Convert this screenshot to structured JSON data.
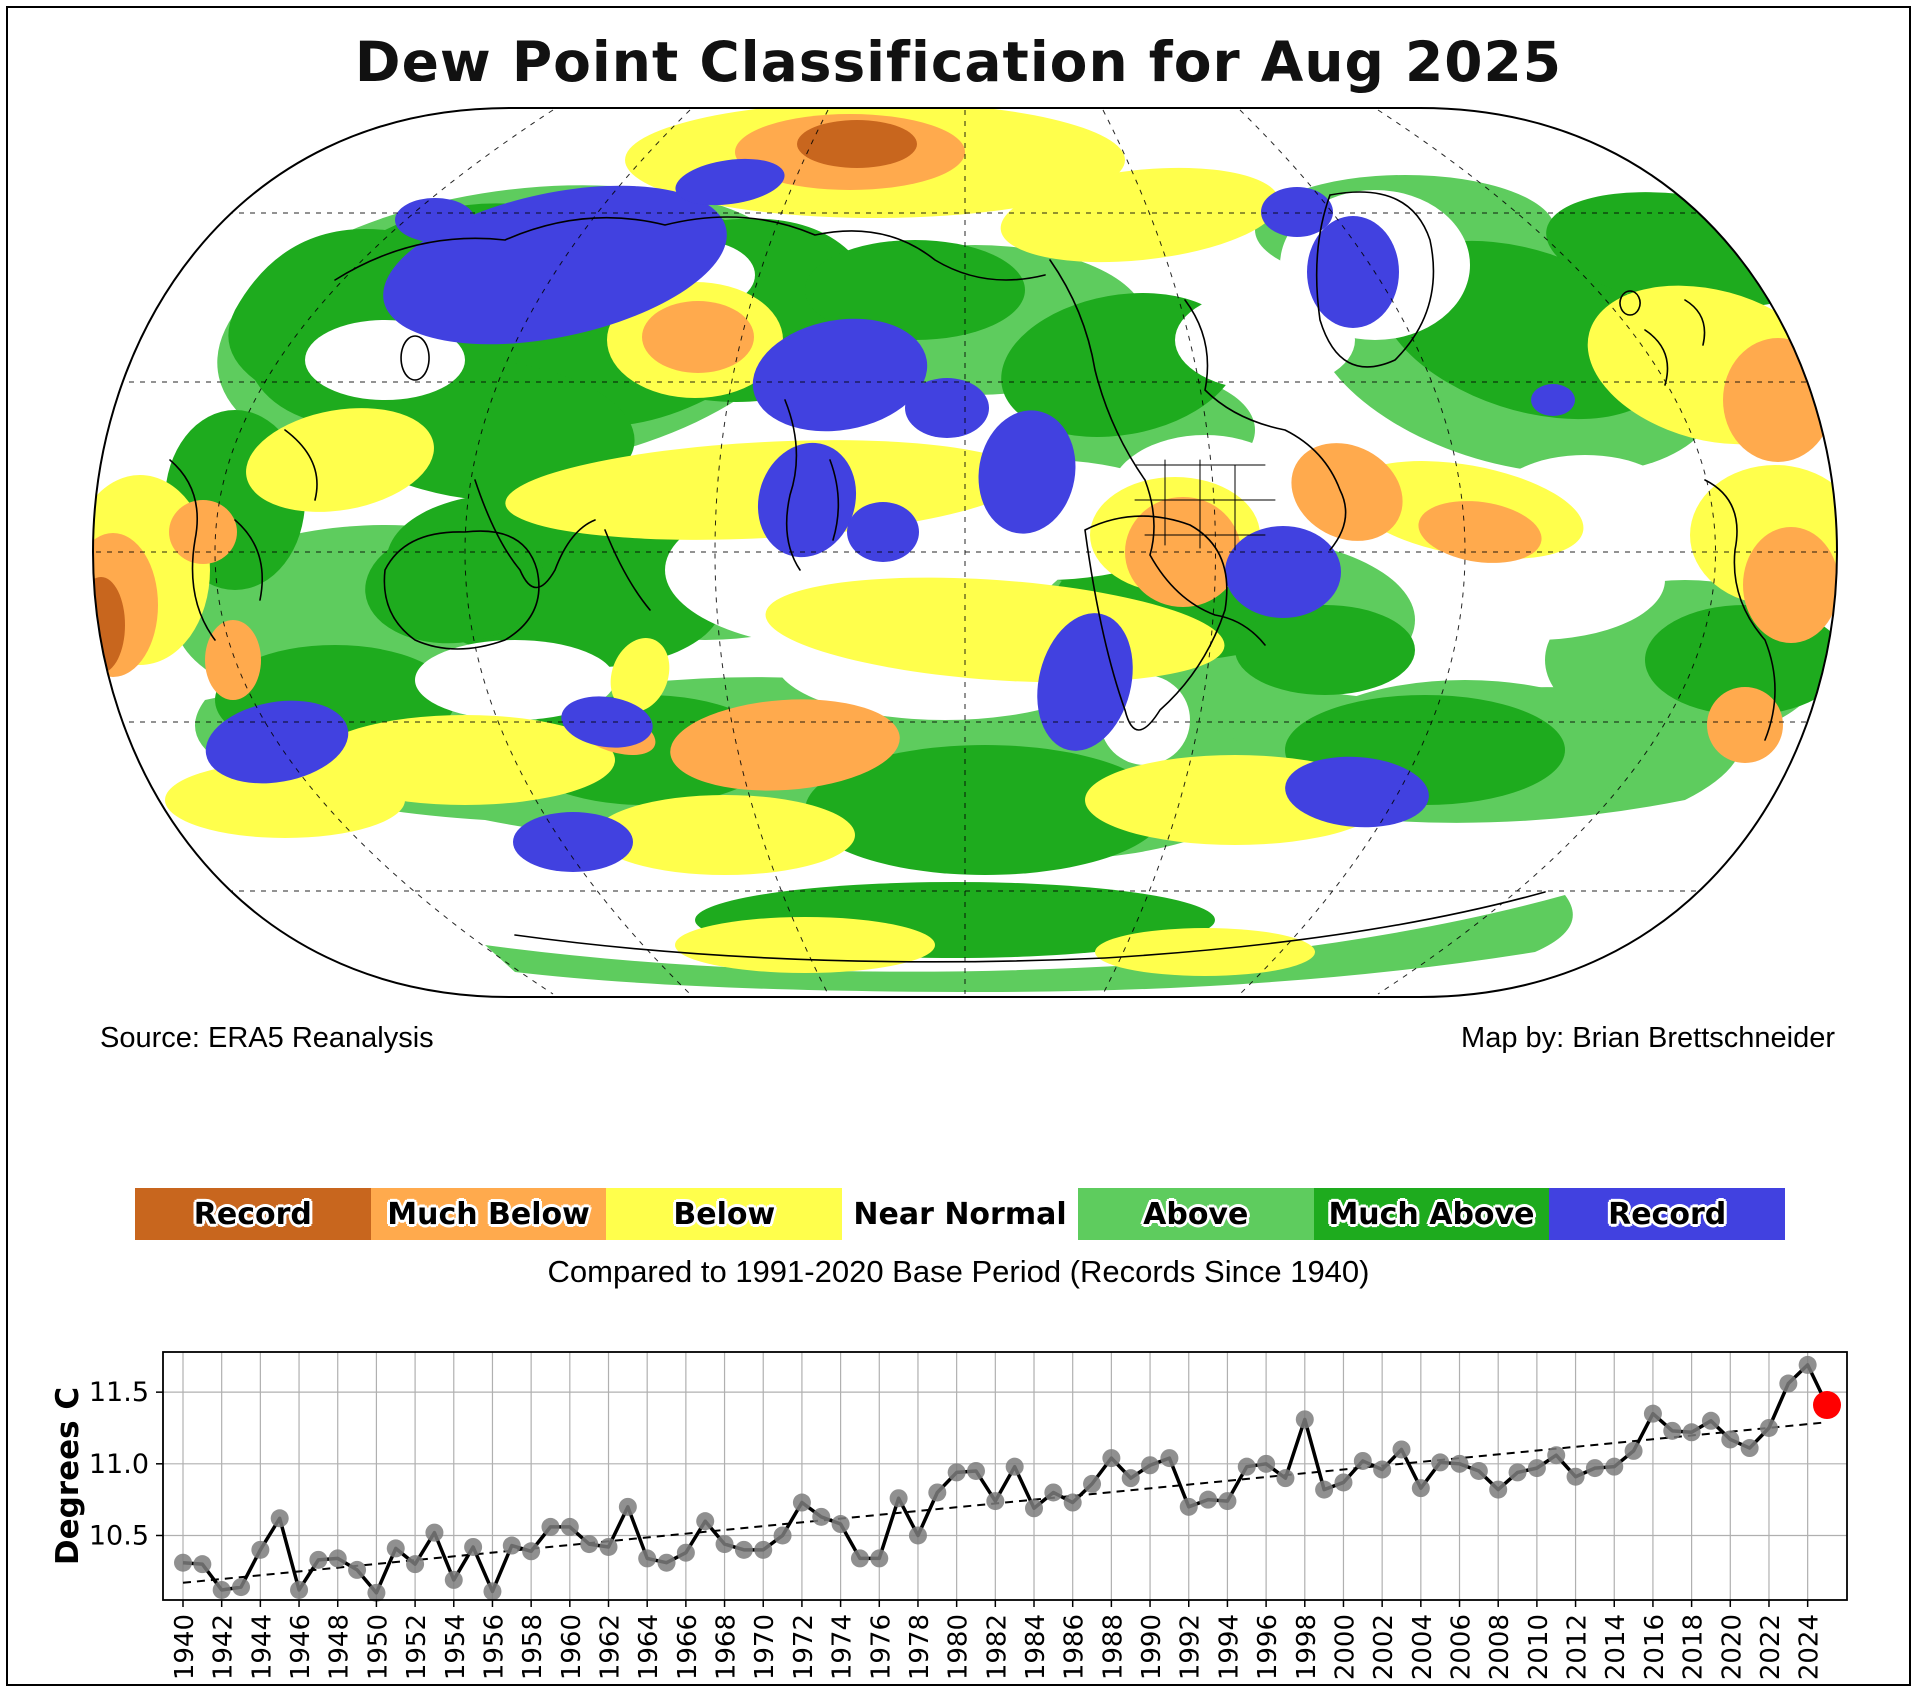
{
  "title": "Dew Point Classification for Aug 2025",
  "map": {
    "source": "Source: ERA5 Reanalysis",
    "credit": "Map by: Brian Brettschneider"
  },
  "legend": {
    "items": [
      {
        "label": "Record",
        "color": "#C8661E",
        "text_halo": true
      },
      {
        "label": "Much Below",
        "color": "#FFAA4D",
        "text_halo": true
      },
      {
        "label": "Below",
        "color": "#FFFF4C",
        "text_halo": true
      },
      {
        "label": "Near Normal",
        "color": "#FFFFFF",
        "text_halo": false
      },
      {
        "label": "Above",
        "color": "#5ECC5E",
        "text_halo": true
      },
      {
        "label": "Much Above",
        "color": "#1EAB1E",
        "text_halo": true
      },
      {
        "label": "Record",
        "color": "#4141E0",
        "text_halo": true
      }
    ],
    "caption": "Compared to 1991-2020 Base Period   (Records Since 1940)"
  },
  "chart_data": {
    "type": "line",
    "ylabel": "Degrees C",
    "x": [
      1940,
      1941,
      1942,
      1943,
      1944,
      1945,
      1946,
      1947,
      1948,
      1949,
      1950,
      1951,
      1952,
      1953,
      1954,
      1955,
      1956,
      1957,
      1958,
      1959,
      1960,
      1961,
      1962,
      1963,
      1964,
      1965,
      1966,
      1967,
      1968,
      1969,
      1970,
      1971,
      1972,
      1973,
      1974,
      1975,
      1976,
      1977,
      1978,
      1979,
      1980,
      1981,
      1982,
      1983,
      1984,
      1985,
      1986,
      1987,
      1988,
      1989,
      1990,
      1991,
      1992,
      1993,
      1994,
      1995,
      1996,
      1997,
      1998,
      1999,
      2000,
      2001,
      2002,
      2003,
      2004,
      2005,
      2006,
      2007,
      2008,
      2009,
      2010,
      2011,
      2012,
      2013,
      2014,
      2015,
      2016,
      2017,
      2018,
      2019,
      2020,
      2021,
      2022,
      2023,
      2024,
      2025
    ],
    "values": [
      10.31,
      10.3,
      10.12,
      10.14,
      10.4,
      10.62,
      10.12,
      10.33,
      10.34,
      10.26,
      10.1,
      10.41,
      10.3,
      10.52,
      10.19,
      10.42,
      10.11,
      10.43,
      10.39,
      10.56,
      10.56,
      10.44,
      10.42,
      10.7,
      10.34,
      10.31,
      10.38,
      10.6,
      10.44,
      10.4,
      10.4,
      10.5,
      10.73,
      10.63,
      10.58,
      10.34,
      10.34,
      10.76,
      10.5,
      10.8,
      10.94,
      10.95,
      10.74,
      10.98,
      10.69,
      10.8,
      10.73,
      10.86,
      11.04,
      10.9,
      10.99,
      11.04,
      10.7,
      10.75,
      10.74,
      10.98,
      11.0,
      10.9,
      11.31,
      10.82,
      10.87,
      11.02,
      10.96,
      11.1,
      10.83,
      11.01,
      11.0,
      10.95,
      10.82,
      10.94,
      10.97,
      11.06,
      10.91,
      10.97,
      10.98,
      11.09,
      11.35,
      11.23,
      11.22,
      11.3,
      11.17,
      11.11,
      11.25,
      11.56,
      11.69,
      11.41
    ],
    "yticks": [
      10.5,
      11.0,
      11.5
    ],
    "ylim": [
      10.05,
      11.78
    ],
    "xtick_step": 2,
    "grid": true,
    "trend": {
      "start_year": 1940,
      "start_value": 10.17,
      "end_year": 2025,
      "end_value": 11.29,
      "style": "dashed"
    },
    "line_color": "#000000",
    "marker_color": "#7d7d7d",
    "last_point_color": "#ff0000"
  }
}
